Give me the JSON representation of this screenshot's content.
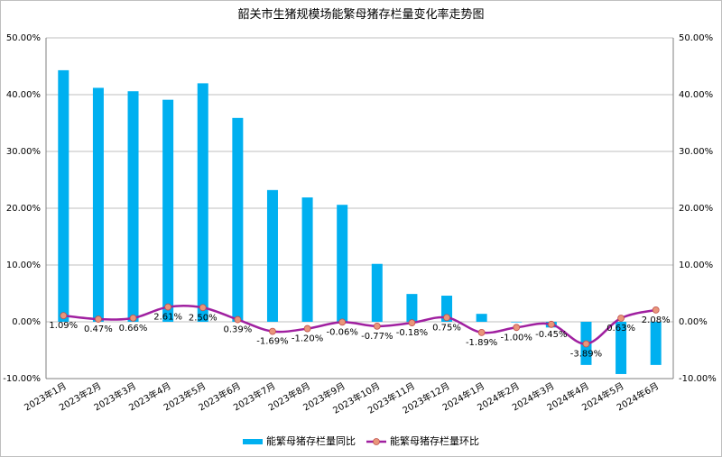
{
  "chart_data": {
    "type": "bar",
    "title": "韶关市生猪规模场能繁母猪存栏量变化率走势图",
    "categories": [
      "2023年1月",
      "2023年2月",
      "2023年3月",
      "2023年4月",
      "2023年5月",
      "2023年6月",
      "2023年7月",
      "2023年8月",
      "2023年9月",
      "2023年10月",
      "2023年11月",
      "2023年12月",
      "2024年1月",
      "2024年2月",
      "2024年3月",
      "2024年4月",
      "2024年5月",
      "2024年6月"
    ],
    "ylim": [
      -10,
      50
    ],
    "yticks": [
      "-10.00%",
      "0.00%",
      "10.00%",
      "20.00%",
      "30.00%",
      "40.00%",
      "50.00%"
    ],
    "ytick_values": [
      -10,
      0,
      10,
      20,
      30,
      40,
      50
    ],
    "series": [
      {
        "name": "能繁母猪存栏量同比",
        "type": "bar",
        "color": "#00B0F0",
        "values": [
          44.3,
          41.2,
          40.6,
          39.1,
          42.0,
          35.9,
          23.2,
          21.9,
          20.6,
          10.2,
          4.9,
          4.6,
          1.4,
          -0.1,
          -1.0,
          -7.6,
          -9.2,
          -7.6
        ]
      },
      {
        "name": "能繁母猪存栏量环比",
        "type": "line",
        "color": "#A020A0",
        "marker_color": "#E9967A",
        "values": [
          1.09,
          0.47,
          0.66,
          2.61,
          2.5,
          0.39,
          -1.69,
          -1.2,
          -0.06,
          -0.77,
          -0.18,
          0.75,
          -1.89,
          -1.0,
          -0.45,
          -3.89,
          0.63,
          2.08
        ],
        "labels": [
          "1.09%",
          "0.47%",
          "0.66%",
          "2.61%",
          "2.50%",
          "0.39%",
          "-1.69%",
          "-1.20%",
          "-0.06%",
          "-0.77%",
          "-0.18%",
          "0.75%",
          "-1.89%",
          "-1.00%",
          "-0.45%",
          "-3.89%",
          "0.63%",
          "2.08%"
        ]
      }
    ],
    "grid": true,
    "legend": "bottom"
  }
}
